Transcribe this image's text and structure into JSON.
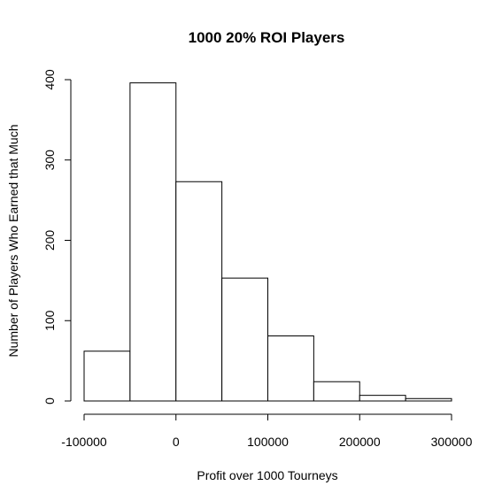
{
  "chart_data": {
    "type": "histogram",
    "title": "1000 20% ROI Players",
    "xlabel": "Profit over 1000 Tourneys",
    "ylabel": "Number of Players Who Earned that Much",
    "bins": [
      {
        "from": -100000,
        "to": -50000,
        "count": 62
      },
      {
        "from": -50000,
        "to": 0,
        "count": 396
      },
      {
        "from": 0,
        "to": 50000,
        "count": 273
      },
      {
        "from": 50000,
        "to": 100000,
        "count": 153
      },
      {
        "from": 100000,
        "to": 150000,
        "count": 81
      },
      {
        "from": 150000,
        "to": 200000,
        "count": 24
      },
      {
        "from": 200000,
        "to": 250000,
        "count": 7
      },
      {
        "from": 250000,
        "to": 300000,
        "count": 3
      }
    ],
    "xlim": [
      -100000,
      300000
    ],
    "ylim": [
      0,
      400
    ],
    "x_ticks": [
      -100000,
      0,
      100000,
      200000,
      300000
    ],
    "x_tick_labels": [
      "-100000",
      "0",
      "100000",
      "200000",
      "300000"
    ],
    "y_ticks": [
      0,
      100,
      200,
      300,
      400
    ],
    "y_tick_labels": [
      "0",
      "100",
      "200",
      "300",
      "400"
    ],
    "bar_fill": "#ffffff",
    "bar_stroke": "#000000",
    "grid": false
  }
}
